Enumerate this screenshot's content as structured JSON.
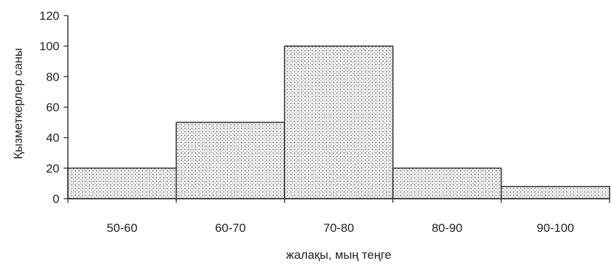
{
  "chart_data": {
    "type": "bar",
    "categories": [
      "50-60",
      "60-70",
      "70-80",
      "80-90",
      "90-100"
    ],
    "values": [
      20,
      50,
      100,
      20,
      8
    ],
    "title": "",
    "xlabel": "жалақы, мың теңге",
    "ylabel": "Қызметкерлер саны",
    "ylim": [
      0,
      120
    ],
    "yticks": [
      0,
      20,
      40,
      60,
      80,
      100,
      120
    ],
    "grid": false,
    "colors": {
      "bar_fill": "#f2f2f2",
      "bar_dots": "#555555",
      "bar_stroke": "#222222",
      "axis": "#222222"
    }
  }
}
